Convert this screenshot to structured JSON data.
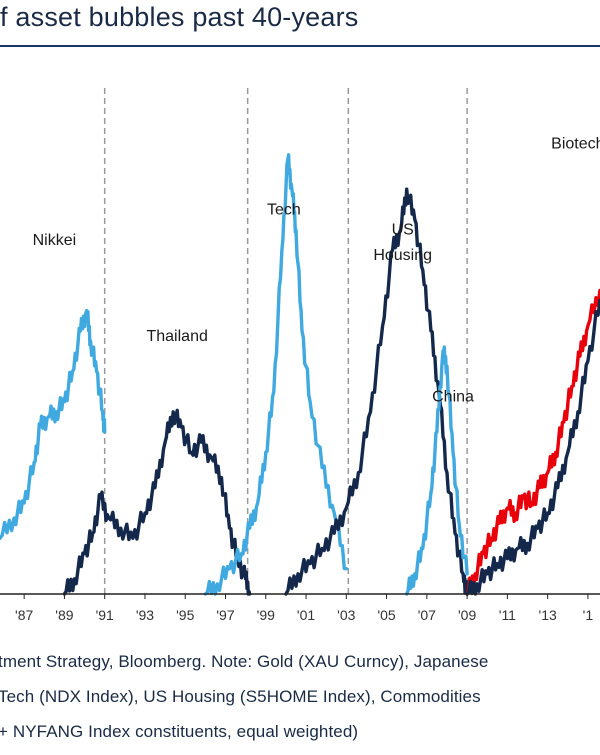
{
  "header": {
    "title": "f asset bubbles past 40-years"
  },
  "chart_data": {
    "type": "line",
    "title": "f asset bubbles past 40-years",
    "xlabel": "",
    "ylabel": "",
    "x_range": [
      1985.8,
      2015.6
    ],
    "y_range": [
      0,
      100
    ],
    "x_ticks": [
      {
        "label": "'87",
        "x": 1987
      },
      {
        "label": "'89",
        "x": 1989
      },
      {
        "label": "'91",
        "x": 1991
      },
      {
        "label": "'93",
        "x": 1993
      },
      {
        "label": "'95",
        "x": 1995
      },
      {
        "label": "'97",
        "x": 1997
      },
      {
        "label": "'99",
        "x": 1999
      },
      {
        "label": "'01",
        "x": 2001
      },
      {
        "label": "'03",
        "x": 2003
      },
      {
        "label": "'05",
        "x": 2005
      },
      {
        "label": "'07",
        "x": 2007
      },
      {
        "label": "'09",
        "x": 2009
      },
      {
        "label": "'11",
        "x": 2011
      },
      {
        "label": "'13",
        "x": 2013
      },
      {
        "label": "'1",
        "x": 2015
      }
    ],
    "vlines": [
      1991,
      1998.1,
      2003.1,
      2009
    ],
    "series": [
      {
        "name": "Nikkei",
        "color": "#3fa9e0",
        "x": [
          1985.8,
          1986.5,
          1987.0,
          1987.5,
          1987.8,
          1988.2,
          1988.6,
          1989.0,
          1989.4,
          1989.8,
          1990.1,
          1990.3,
          1990.6,
          1990.9,
          1991.0
        ],
        "y": [
          11,
          15,
          18,
          26,
          33,
          35,
          36,
          38,
          44,
          52,
          56,
          50,
          44,
          36,
          32
        ]
      },
      {
        "name": "Thailand",
        "color": "#14284b",
        "x": [
          1989.0,
          1989.5,
          1990.0,
          1990.4,
          1990.8,
          1991.2,
          1991.8,
          1992.4,
          1993.0,
          1993.5,
          1994.0,
          1994.4,
          1994.8,
          1995.3,
          1995.8,
          1996.3,
          1996.8,
          1997.2,
          1997.6,
          1998.0,
          1998.2
        ],
        "y": [
          0,
          3,
          8,
          12,
          19,
          15,
          13,
          11,
          16,
          21,
          30,
          36,
          33,
          28,
          30,
          27,
          23,
          13,
          7,
          3,
          0
        ]
      },
      {
        "name": "Tech",
        "color": "#3fa9e0",
        "x": [
          1996.0,
          1996.6,
          1997.2,
          1997.8,
          1998.2,
          1998.6,
          1999.0,
          1999.4,
          1999.8,
          2000.1,
          2000.3,
          2000.5,
          2000.8,
          2001.2,
          2001.8,
          2002.4,
          2003.0
        ],
        "y": [
          0,
          2,
          5,
          8,
          13,
          18,
          28,
          40,
          68,
          86,
          80,
          72,
          52,
          38,
          25,
          16,
          5
        ]
      },
      {
        "name": "US Housing",
        "color": "#14284b",
        "x": [
          2000.0,
          2000.6,
          2001.2,
          2001.8,
          2002.4,
          2003.0,
          2003.6,
          2004.2,
          2004.8,
          2005.3,
          2005.7,
          2006.0,
          2006.4,
          2006.8,
          2007.2,
          2007.6,
          2008.0,
          2008.4,
          2008.8,
          2009.0
        ],
        "y": [
          0,
          4,
          6,
          9,
          12,
          17,
          24,
          36,
          53,
          68,
          72,
          80,
          74,
          64,
          52,
          40,
          24,
          12,
          4,
          0
        ]
      },
      {
        "name": "China",
        "color": "#3fa9e0",
        "x": [
          2006.0,
          2006.4,
          2006.8,
          2007.2,
          2007.5,
          2007.8,
          2008.0,
          2008.3,
          2008.6,
          2009.0
        ],
        "y": [
          0,
          4,
          9,
          20,
          32,
          48,
          45,
          28,
          14,
          4
        ]
      },
      {
        "name": "Biotech",
        "color": "#e8000b",
        "x": [
          2009.0,
          2009.4,
          2009.8,
          2010.2,
          2010.6,
          2011.0,
          2011.4,
          2011.8,
          2012.2,
          2012.6,
          2013.0,
          2013.4,
          2013.8,
          2014.2,
          2014.6,
          2015.0,
          2015.6
        ],
        "y": [
          0,
          4,
          8,
          11,
          14,
          17,
          16,
          19,
          18,
          21,
          24,
          28,
          34,
          41,
          47,
          53,
          60
        ]
      },
      {
        "name": "FANG",
        "color": "#14284b",
        "x": [
          2009.0,
          2009.5,
          2010.0,
          2010.5,
          2011.0,
          2011.5,
          2012.0,
          2012.5,
          2013.0,
          2013.5,
          2014.0,
          2014.5,
          2015.0,
          2015.6
        ],
        "y": [
          0,
          2,
          4,
          6,
          7,
          9,
          10,
          13,
          16,
          21,
          28,
          36,
          46,
          58
        ]
      }
    ],
    "annotations": [
      {
        "text": "Nikkei",
        "x": 1988.5,
        "y": 69
      },
      {
        "text": "Thailand",
        "x": 1994.6,
        "y": 50
      },
      {
        "text": "Tech",
        "x": 1999.9,
        "y": 75
      },
      {
        "text": "US",
        "x": 2005.8,
        "y": 71
      },
      {
        "text": "Housing",
        "x": 2005.8,
        "y": 66
      },
      {
        "text": "China",
        "x": 2008.3,
        "y": 38
      },
      {
        "text": "Biotech",
        "x": 2014.5,
        "y": 88
      }
    ]
  },
  "footer": {
    "lines": [
      "tment Strategy, Bloomberg. Note: Gold (XAU Curncy), Japanese",
      "Tech (NDX Index), US Housing (S5HOME Index), Commodities",
      "+ NYFANG Index constituents, equal weighted)"
    ]
  }
}
